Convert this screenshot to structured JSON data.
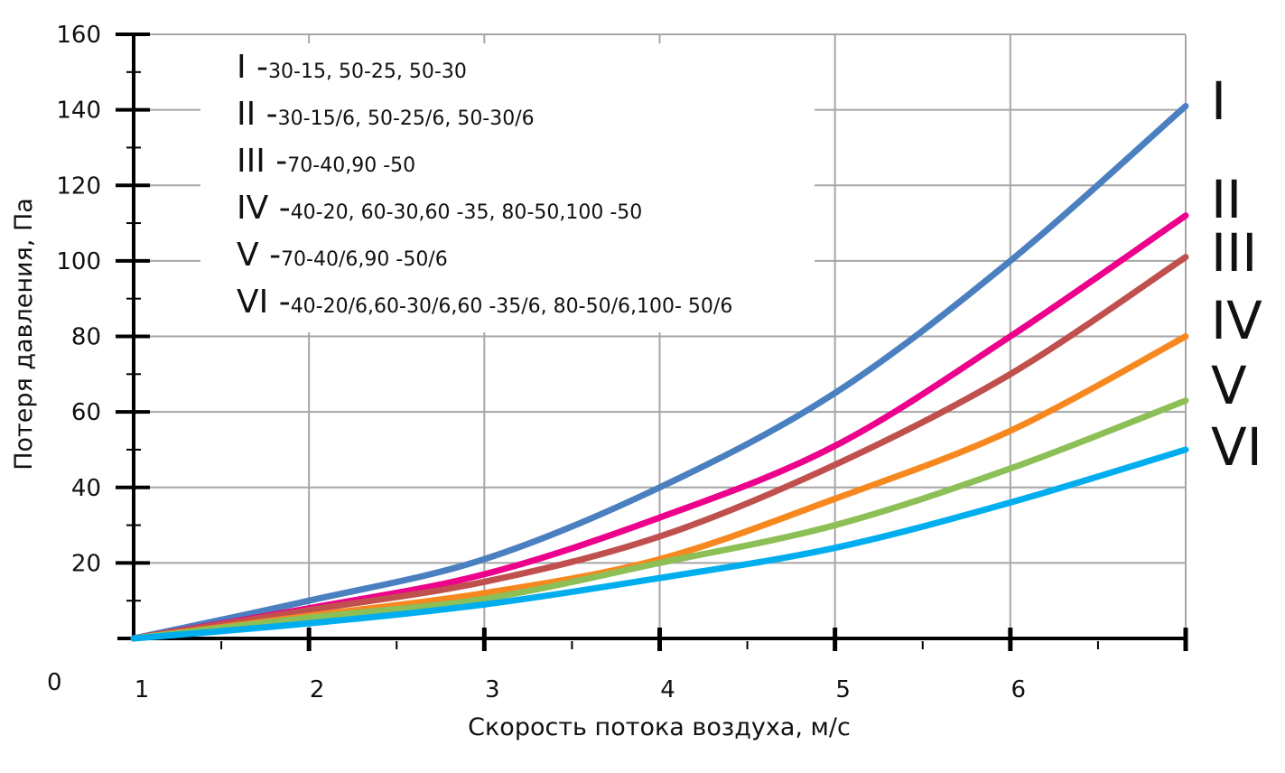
{
  "chart_data": {
    "type": "line",
    "title": "",
    "xlabel": "Скорость потока воздуха, м/с",
    "ylabel": "Потеря давления, Па",
    "xlim": [
      1,
      7
    ],
    "ylim": [
      0,
      160
    ],
    "x_ticks": [
      {
        "value": 1,
        "label": "1"
      },
      {
        "value": 2,
        "label": "2"
      },
      {
        "value": 3,
        "label": "3"
      },
      {
        "value": 4,
        "label": "4"
      },
      {
        "value": 5,
        "label": "5"
      },
      {
        "value": 6,
        "label": "6"
      }
    ],
    "y_ticks": [
      {
        "value": 20,
        "label": "20"
      },
      {
        "value": 40,
        "label": "40"
      },
      {
        "value": 60,
        "label": "60"
      },
      {
        "value": 80,
        "label": "80"
      },
      {
        "value": 100,
        "label": "100"
      },
      {
        "value": 120,
        "label": "120"
      },
      {
        "value": 140,
        "label": "140"
      },
      {
        "value": 160,
        "label": "160"
      }
    ],
    "origin_label": "0",
    "grid": true,
    "legend_position": "top-left",
    "series": [
      {
        "name": "I",
        "description": "30-15, 50-25, 50-30",
        "color": "#4a7fc0",
        "x": [
          1,
          2,
          3,
          4,
          5,
          6,
          7
        ],
        "y": [
          0,
          10,
          21,
          40,
          65,
          100,
          141
        ]
      },
      {
        "name": "II",
        "description": "30-15/6, 50-25/6, 50-30/6",
        "color": "#ec008c",
        "x": [
          1,
          2,
          3,
          4,
          5,
          6,
          7
        ],
        "y": [
          0,
          8,
          17,
          32,
          51,
          80,
          112
        ]
      },
      {
        "name": "III",
        "description": "70-40,90 -50",
        "color": "#c0504d",
        "x": [
          1,
          2,
          3,
          4,
          5,
          6,
          7
        ],
        "y": [
          0,
          7.5,
          15,
          27,
          46,
          70,
          101
        ]
      },
      {
        "name": "IV",
        "description": "40-20, 60-30,60 -35, 80-50,100 -50",
        "color": "#f7881f",
        "x": [
          1,
          2,
          3,
          4,
          5,
          6,
          7
        ],
        "y": [
          0,
          6,
          12,
          21,
          37,
          55,
          80
        ]
      },
      {
        "name": "V",
        "description": "70-40/6,90 -50/6",
        "color": "#8cbf56",
        "x": [
          1,
          2,
          3,
          4,
          5,
          6,
          7
        ],
        "y": [
          0,
          5.5,
          10.5,
          20,
          30,
          45,
          63
        ]
      },
      {
        "name": "VI",
        "description": "40-20/6,60-30/6,60 -35/6, 80-50/6,100- 50/6",
        "color": "#00aeef",
        "x": [
          1,
          2,
          3,
          4,
          5,
          6,
          7
        ],
        "y": [
          0,
          4,
          9,
          16,
          24,
          36,
          50
        ]
      }
    ]
  }
}
